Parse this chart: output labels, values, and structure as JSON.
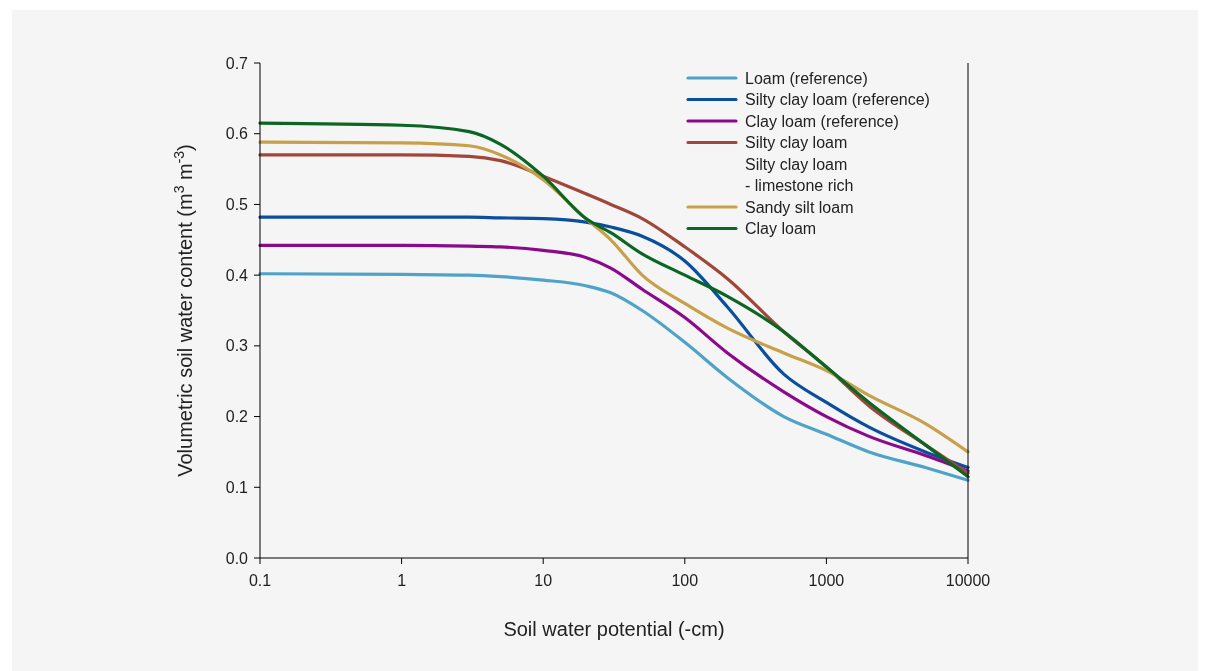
{
  "chart_data": {
    "type": "line",
    "xlabel": "Soil water potential (-cm)",
    "ylabel": "Volumetric soil water content (m$^{3}$ m$^{-3}$)",
    "log": "x",
    "xlim": [
      0.1,
      10000
    ],
    "xticks": [
      0.1,
      1,
      10,
      100,
      1000,
      10000
    ],
    "ylim": [
      0,
      0.7
    ],
    "yticks": [
      {
        "value": 0,
        "label": "0.0"
      },
      0.1,
      0.2,
      0.3,
      0.4,
      0.5,
      0.6,
      0.7
    ],
    "x": [
      0.1,
      1,
      3,
      5,
      10,
      20,
      30,
      50,
      100,
      200,
      500,
      1000,
      2000,
      5000,
      10000
    ],
    "legend": "top right",
    "grid": false,
    "marker": "none",
    "line_style": "solid",
    "series": [
      {
        "name": "Loam (reference)",
        "color": "#4fa3c7",
        "values": [
          0.402,
          0.401,
          0.4,
          0.398,
          0.393,
          0.385,
          0.375,
          0.35,
          0.305,
          0.255,
          0.2,
          0.175,
          0.15,
          0.128,
          0.11
        ]
      },
      {
        "name": "Silty clay loam (reference)",
        "color": "#0a4f9e",
        "values": [
          0.482,
          0.482,
          0.482,
          0.481,
          0.48,
          0.475,
          0.468,
          0.455,
          0.42,
          0.355,
          0.26,
          0.22,
          0.185,
          0.15,
          0.128
        ]
      },
      {
        "name": "Clay loam (reference)",
        "color": "#8b0a8b",
        "values": [
          0.442,
          0.442,
          0.441,
          0.44,
          0.435,
          0.425,
          0.41,
          0.38,
          0.34,
          0.29,
          0.235,
          0.2,
          0.172,
          0.145,
          0.123
        ]
      },
      {
        "name": "Silty clay loam",
        "color": "#a0473a",
        "values": [
          0.57,
          0.57,
          0.568,
          0.562,
          0.54,
          0.515,
          0.5,
          0.48,
          0.44,
          0.395,
          0.32,
          0.27,
          0.215,
          0.16,
          0.12
        ]
      },
      {
        "name": "Silty clay loam - limestone rich",
        "color": null,
        "values": [
          null,
          null,
          null,
          null,
          null,
          null,
          null,
          null,
          null,
          null,
          null,
          null,
          null,
          null,
          null
        ]
      },
      {
        "name": "Sandy silt loam",
        "color": "#c8a04a",
        "values": [
          0.588,
          0.587,
          0.583,
          0.57,
          0.535,
          0.48,
          0.45,
          0.4,
          0.36,
          0.325,
          0.29,
          0.265,
          0.23,
          0.19,
          0.15
        ]
      },
      {
        "name": "Clay loam",
        "color": "#0b6623",
        "values": [
          0.615,
          0.612,
          0.603,
          0.585,
          0.54,
          0.48,
          0.46,
          0.43,
          0.4,
          0.37,
          0.32,
          0.27,
          0.22,
          0.16,
          0.115
        ]
      }
    ]
  }
}
